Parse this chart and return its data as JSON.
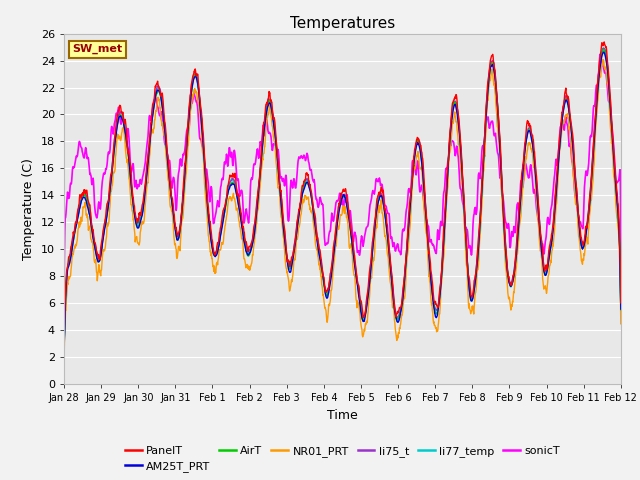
{
  "title": "Temperatures",
  "xlabel": "Time",
  "ylabel": "Temperature (C)",
  "ylim": [
    0,
    26
  ],
  "yticks": [
    0,
    2,
    4,
    6,
    8,
    10,
    12,
    14,
    16,
    18,
    20,
    22,
    24,
    26
  ],
  "series_names": [
    "PanelT",
    "AM25T_PRT",
    "AirT",
    "NR01_PRT",
    "li75_t",
    "li77_temp",
    "sonicT"
  ],
  "series_colors": [
    "#ff0000",
    "#0000dd",
    "#00cc00",
    "#ff9900",
    "#9933cc",
    "#00cccc",
    "#ff00ff"
  ],
  "series_linewidths": [
    1.0,
    1.0,
    1.0,
    1.0,
    1.0,
    1.0,
    1.2
  ],
  "n_days": 15,
  "xtick_labels": [
    "Jan 28",
    "Jan 29",
    "Jan 30",
    "Jan 31",
    "Feb 1",
    "Feb 2",
    "Feb 3",
    "Feb 4",
    "Feb 5",
    "Feb 6",
    "Feb 7",
    "Feb 8",
    "Feb 9",
    "Feb 10",
    "Feb 11",
    "Feb 12"
  ],
  "plot_bg_color": "#e8e8e8",
  "fig_bg_color": "#f2f2f2",
  "grid_color": "#ffffff",
  "annotation_text": "SW_met",
  "annotation_bg": "#ffff99",
  "annotation_border": "#996600",
  "annotation_text_color": "#990000",
  "day_bases": [
    8,
    11,
    12,
    10,
    9,
    10,
    8,
    6,
    4,
    5,
    5,
    7,
    7,
    9,
    11
  ],
  "day_amps": [
    6,
    9,
    10,
    13,
    6,
    11,
    7,
    8,
    10,
    13,
    16,
    17,
    12,
    12,
    14
  ],
  "day_bases_s": [
    13,
    15,
    15,
    14,
    12,
    15,
    13,
    10,
    10,
    10,
    10,
    12,
    10,
    12,
    15
  ],
  "day_amps_s": [
    5,
    5,
    6,
    7,
    5,
    4,
    4,
    4,
    5,
    6,
    8,
    8,
    6,
    7,
    9
  ]
}
